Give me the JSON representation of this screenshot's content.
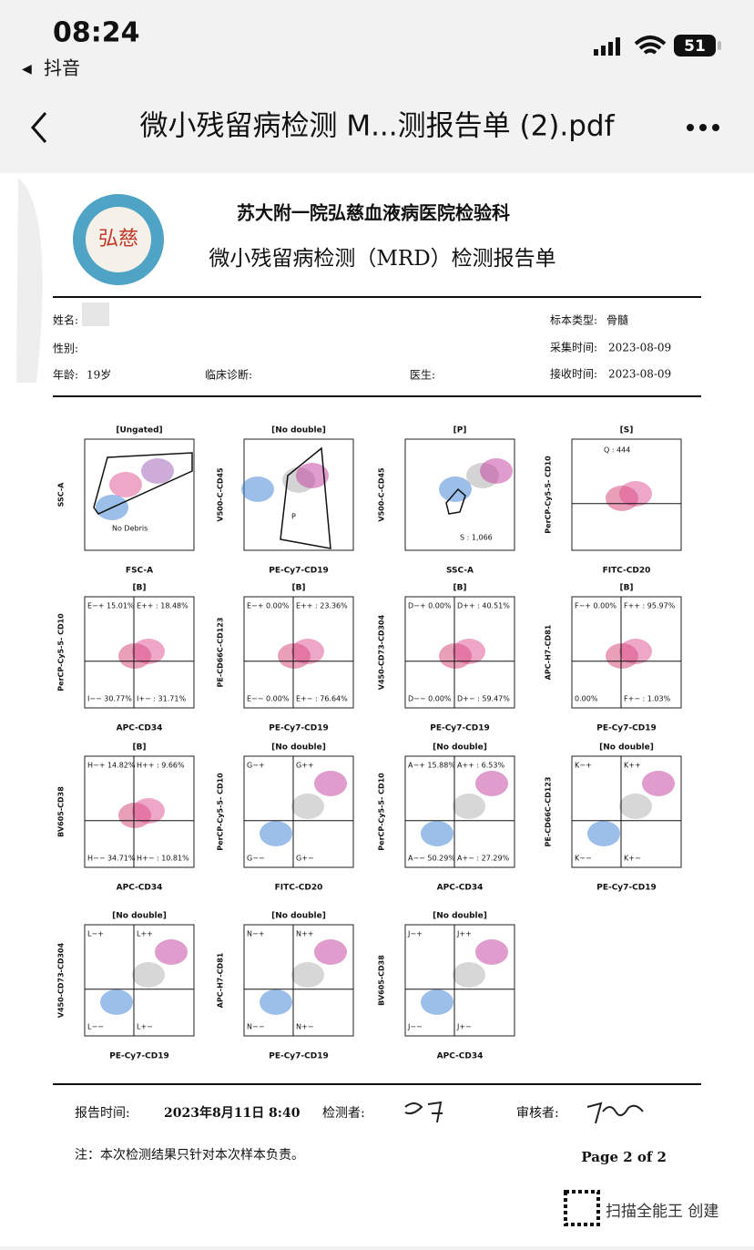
{
  "status": {
    "time": "08:24",
    "back_app": "抖音",
    "battery": "51"
  },
  "nav": {
    "title": "微小残留病检测 M...测报告单 (2).pdf"
  },
  "document": {
    "logo_text": "弘慈",
    "hospital": "苏大附一院弘慈血液病医院检验科",
    "report_title": "微小残留病检测（MRD）检测报告单",
    "fields": [
      {
        "label": "姓名:"
      },
      {
        "label": "性别:"
      },
      {
        "label": "年龄:",
        "value": "19岁"
      },
      {
        "label": "临床诊断:"
      },
      {
        "label": "医生:"
      },
      {
        "label": "标本类型:",
        "value": "骨髓"
      },
      {
        "label": "采集时间:",
        "value": "2023-08-09"
      },
      {
        "label": "接收时间:",
        "value": "2023-08-09"
      }
    ],
    "plots": [
      {
        "title": "[Ungated]",
        "y_label": "SSC-A",
        "x_label": "FSC-A",
        "gates": [
          "No Debris"
        ]
      },
      {
        "title": "[No double]",
        "y_label": "V500-C-CD45",
        "x_label": "PE-Cy7-CD19",
        "gates": [
          "P"
        ]
      },
      {
        "title": "[P]",
        "y_label": "V500-C-CD45",
        "x_label": "SSC-A",
        "gates": [
          "S : 1,066"
        ]
      },
      {
        "title": "[S]",
        "y_label": "PerCP-Cy5-5- CD10",
        "x_label": "FITC-CD20",
        "gates": [
          "Q : 444"
        ]
      },
      {
        "title": "[B]",
        "y_label": "PerCP-Cy5-5- CD10",
        "x_label": "APC-CD34",
        "gates": [
          "E−+ 15.01%",
          "E++ : 18.48%",
          "I−− 30.77%",
          "I+− : 31.71%"
        ]
      },
      {
        "title": "[B]",
        "y_label": "PE-CD66C-CD123",
        "x_label": "PE-Cy7-CD19",
        "gates": [
          "E−+ 0.00%",
          "E++ : 23.36%",
          "E−− 0.00%",
          "E+− : 76.64%"
        ]
      },
      {
        "title": "[B]",
        "y_label": "V450-CD73-CD304",
        "x_label": "PE-Cy7-CD19",
        "gates": [
          "D−+ 0.00%",
          "D++ : 40.51%",
          "D−− 0.00%",
          "D+− : 59.47%"
        ]
      },
      {
        "title": "[B]",
        "y_label": "APC-H7-CD81",
        "x_label": "PE-Cy7-CD19",
        "gates": [
          "F−+ 0.00%",
          "F++ : 95.97%",
          "0.00%",
          "F+− : 1.03%"
        ]
      },
      {
        "title": "[B]",
        "y_label": "BV605-CD38",
        "x_label": "APC-CD34",
        "gates": [
          "H−+ 14.82%",
          "H++ : 9.66%",
          "H−− 34.71%",
          "H+− : 10.81%"
        ]
      },
      {
        "title": "[No double]",
        "y_label": "PerCP-Cy5-5- CD10",
        "x_label": "FITC-CD20",
        "gates": [
          "G−+",
          "G++",
          "G−−",
          "G+−"
        ]
      },
      {
        "title": "[No double]",
        "y_label": "PerCP-Cy5-5- CD10",
        "x_label": "APC-CD34",
        "gates": [
          "A−+ 15.88%",
          "A++ : 6.53%",
          "A−− 50.29%",
          "A+− : 27.29%"
        ]
      },
      {
        "title": "[No double]",
        "y_label": "PE-CD66C-CD123",
        "x_label": "PE-Cy7-CD19",
        "gates": [
          "K−+",
          "K++",
          "K−−",
          "K+−"
        ]
      },
      {
        "title": "[No double]",
        "y_label": "V450-CD73-CD304",
        "x_label": "PE-Cy7-CD19",
        "gates": [
          "L−+",
          "L++",
          "L−−",
          "L+−"
        ]
      },
      {
        "title": "[No double]",
        "y_label": "APC-H7-CD81",
        "x_label": "PE-Cy7-CD19",
        "gates": [
          "N−+",
          "N++",
          "N−−",
          "N+−"
        ]
      },
      {
        "title": "[No double]",
        "y_label": "BV605-CD38",
        "x_label": "APC-CD34",
        "gates": [
          "J−+",
          "J++",
          "J−−",
          "J+−"
        ]
      }
    ],
    "footer": {
      "report_time_label": "报告时间:",
      "report_time": "2023年8月11日 8:40",
      "tester_label": "检测者:",
      "reviewer_label": "审核者:",
      "note": "注：本次检测结果只针对本次样本负责。",
      "page": "Page 2 of 2"
    },
    "watermark": "扫描全能王 创建"
  }
}
